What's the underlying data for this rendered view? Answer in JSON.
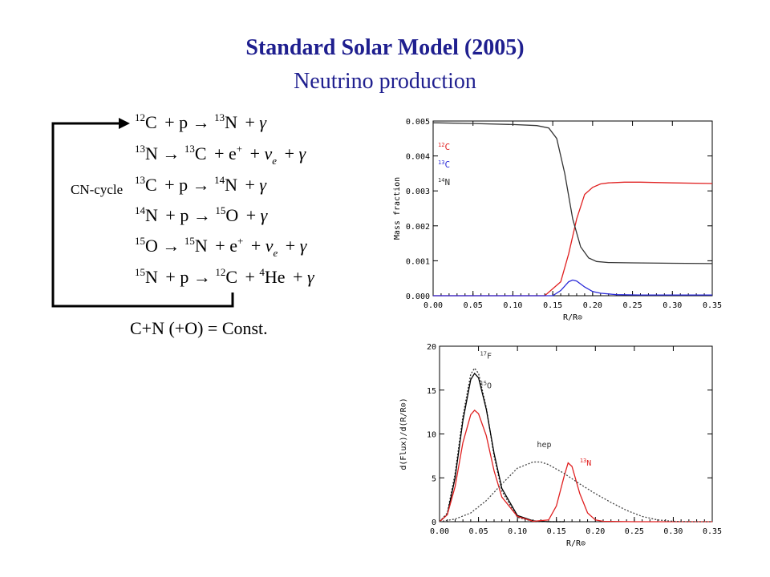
{
  "slide": {
    "title": "Standard Solar Model (2005)",
    "subtitle": "Neutrino production",
    "cycle_label": "CN-cycle",
    "footer_equation": "C+N (+O) = Const."
  },
  "reactions": [
    {
      "left": [
        {
          "sup": "12",
          "el": "C"
        },
        {
          "el": "p"
        }
      ],
      "arrow": true,
      "right": [
        {
          "sup": "13",
          "el": "N"
        },
        {
          "el": "γ"
        }
      ]
    },
    {
      "left": [
        {
          "sup": "13",
          "el": "N"
        }
      ],
      "arrow": true,
      "right": [
        {
          "sup": "13",
          "el": "C"
        },
        {
          "el": "e",
          "sup_after": "+"
        },
        {
          "el": "ν",
          "sub": "e"
        },
        {
          "el": "γ"
        }
      ]
    },
    {
      "left": [
        {
          "sup": "13",
          "el": "C"
        },
        {
          "el": "p"
        }
      ],
      "arrow": true,
      "right": [
        {
          "sup": "14",
          "el": "N"
        },
        {
          "el": "γ"
        }
      ]
    },
    {
      "left": [
        {
          "sup": "14",
          "el": "N"
        },
        {
          "el": "p"
        }
      ],
      "arrow": true,
      "right": [
        {
          "sup": "15",
          "el": "O"
        },
        {
          "el": "γ"
        }
      ]
    },
    {
      "left": [
        {
          "sup": "15",
          "el": "O"
        }
      ],
      "arrow": true,
      "right": [
        {
          "sup": "15",
          "el": "N"
        },
        {
          "el": "e",
          "sup_after": "+"
        },
        {
          "el": "ν",
          "sub": "e"
        },
        {
          "el": "γ"
        }
      ]
    },
    {
      "left": [
        {
          "sup": "15",
          "el": "N"
        },
        {
          "el": "p"
        }
      ],
      "arrow": true,
      "right": [
        {
          "sup": "12",
          "el": "C"
        },
        {
          "sup": "4",
          "el": "He"
        },
        {
          "el": "γ"
        }
      ]
    }
  ],
  "chart_data": [
    {
      "type": "line",
      "xlabel": "R/R⊙",
      "ylabel": "Mass fraction",
      "xlim": [
        0.0,
        0.35
      ],
      "ylim": [
        0.0,
        0.005
      ],
      "xticks": [
        "0.00",
        "0.05",
        "0.10",
        "0.15",
        "0.20",
        "0.25",
        "0.30",
        "0.35"
      ],
      "yticks": [
        "0.000",
        "0.001",
        "0.002",
        "0.003",
        "0.004",
        "0.005"
      ],
      "legend": {
        "placement": "top-left",
        "entries": [
          {
            "sup": "12",
            "label": "C",
            "color": "#e02020"
          },
          {
            "sup": "13",
            "label": "C",
            "color": "#2a2ad8"
          },
          {
            "sup": "14",
            "label": "N",
            "color": "#333333"
          }
        ]
      },
      "series": [
        {
          "name": "12C",
          "color": "#e02020",
          "x": [
            0,
            0.14,
            0.16,
            0.17,
            0.18,
            0.19,
            0.2,
            0.21,
            0.22,
            0.24,
            0.26,
            0.3,
            0.35
          ],
          "y": [
            0,
            0,
            0.0004,
            0.0012,
            0.0022,
            0.0029,
            0.0031,
            0.0032,
            0.00323,
            0.00325,
            0.00325,
            0.00323,
            0.00321
          ]
        },
        {
          "name": "13C",
          "color": "#2a2ad8",
          "x": [
            0,
            0.15,
            0.16,
            0.17,
            0.175,
            0.18,
            0.19,
            0.2,
            0.21,
            0.23,
            0.26,
            0.3,
            0.35
          ],
          "y": [
            0,
            0,
            0.00015,
            0.0004,
            0.00045,
            0.00042,
            0.00025,
            0.00012,
            7e-05,
            3e-05,
            2e-05,
            2e-05,
            2e-05
          ]
        },
        {
          "name": "14N",
          "color": "#333333",
          "x": [
            0,
            0.05,
            0.1,
            0.13,
            0.145,
            0.155,
            0.165,
            0.175,
            0.185,
            0.195,
            0.205,
            0.22,
            0.25,
            0.3,
            0.35
          ],
          "y": [
            0.00495,
            0.00493,
            0.0049,
            0.00487,
            0.0048,
            0.0045,
            0.0035,
            0.0022,
            0.0014,
            0.00108,
            0.00098,
            0.00095,
            0.00094,
            0.00093,
            0.00092
          ]
        }
      ]
    },
    {
      "type": "line",
      "xlabel": "R/R⊙",
      "ylabel": "d(Flux)/d(R/R⊙)",
      "xlim": [
        0.0,
        0.35
      ],
      "ylim": [
        0,
        20
      ],
      "xticks": [
        "0.00",
        "0.05",
        "0.10",
        "0.15",
        "0.20",
        "0.25",
        "0.30",
        "0.35"
      ],
      "yticks": [
        "0",
        "5",
        "10",
        "15",
        "20"
      ],
      "series": [
        {
          "name": "17F",
          "color": "#333333",
          "dash": true,
          "x": [
            0,
            0.01,
            0.02,
            0.03,
            0.04,
            0.045,
            0.05,
            0.06,
            0.07,
            0.08,
            0.1,
            0.12,
            0.14,
            0.16
          ],
          "y": [
            0,
            1,
            5.5,
            12,
            16.8,
            17.5,
            16.9,
            13,
            7.5,
            3.5,
            0.5,
            0.05,
            0,
            0
          ]
        },
        {
          "name": "15O",
          "color": "#000000",
          "x": [
            0,
            0.01,
            0.02,
            0.03,
            0.04,
            0.045,
            0.05,
            0.06,
            0.07,
            0.08,
            0.1,
            0.12,
            0.14,
            0.16
          ],
          "y": [
            0,
            0.8,
            5,
            11.5,
            16.2,
            16.9,
            16.4,
            12.8,
            7.8,
            3.8,
            0.7,
            0.1,
            0,
            0
          ]
        },
        {
          "name": "13N",
          "color": "#e02020",
          "x": [
            0,
            0.01,
            0.02,
            0.03,
            0.04,
            0.045,
            0.05,
            0.06,
            0.07,
            0.08,
            0.1,
            0.12,
            0.14,
            0.15,
            0.16,
            0.165,
            0.17,
            0.18,
            0.19,
            0.2,
            0.21,
            0.25,
            0.3,
            0.35
          ],
          "y": [
            0,
            0.8,
            4,
            9,
            12.2,
            12.7,
            12.3,
            9.8,
            5.8,
            2.8,
            0.6,
            0.05,
            0.2,
            1.8,
            5.2,
            6.7,
            6.3,
            3.2,
            1,
            0.2,
            0.05,
            0,
            0,
            0
          ]
        },
        {
          "name": "hep",
          "color": "#444444",
          "dash": true,
          "x": [
            0,
            0.02,
            0.04,
            0.06,
            0.08,
            0.1,
            0.12,
            0.13,
            0.14,
            0.16,
            0.18,
            0.2,
            0.22,
            0.24,
            0.26,
            0.28,
            0.3,
            0.32,
            0.34,
            0.35
          ],
          "y": [
            0,
            0.3,
            1,
            2.4,
            4.3,
            6.1,
            6.8,
            6.8,
            6.5,
            5.5,
            4.3,
            3.2,
            2.2,
            1.3,
            0.6,
            0.2,
            0.05,
            0,
            0,
            0
          ]
        }
      ],
      "annotations": [
        {
          "sup": "17",
          "text": "F",
          "x": 0.052,
          "y": 18.6,
          "color": "#333333"
        },
        {
          "sup": "15",
          "text": "O",
          "x": 0.052,
          "y": 15.2,
          "color": "#333333"
        },
        {
          "text": "hep",
          "x": 0.125,
          "y": 8.5,
          "color": "#333333"
        },
        {
          "sup": "13",
          "text": "N",
          "x": 0.18,
          "y": 6.4,
          "color": "#e02020"
        }
      ]
    }
  ]
}
